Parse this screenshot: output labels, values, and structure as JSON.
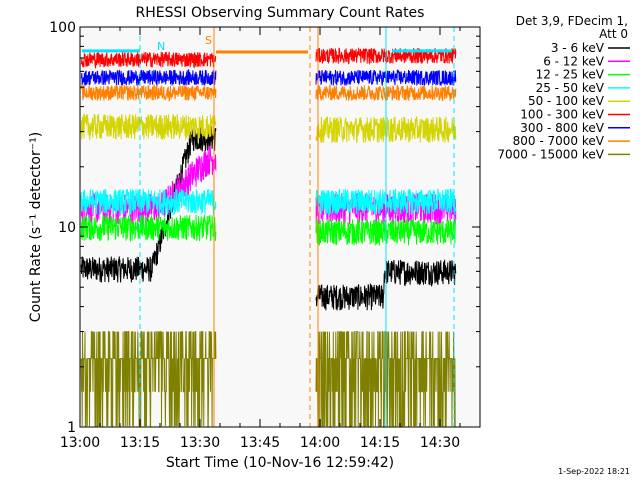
{
  "header": {
    "title": "RHESSI Observing Summary Count Rates",
    "detector_info_1": "Det 3,9, FDecim 1,",
    "detector_info_2": "Att 0",
    "footer_date": "1-Sep-2022 18:21"
  },
  "markers": {
    "s": "S",
    "n": "N"
  },
  "colors": {
    "background": "#ffffff",
    "plot_bg": "#f8f8f8",
    "axis": "#000000",
    "cyan": "#00e5ff",
    "orange": "#ff8000"
  },
  "chart_data": {
    "type": "line",
    "title": "RHESSI Observing Summary Count Rates",
    "xlabel": "Start Time (10-Nov-16 12:59:42)",
    "ylabel": "Count Rate (s⁻¹ detector⁻¹)",
    "y_scale": "log",
    "x_range_min": [
      0,
      100
    ],
    "ylim": [
      1,
      100
    ],
    "x_ticks": [
      {
        "min": 0,
        "label": "13:00"
      },
      {
        "min": 15,
        "label": "13:15"
      },
      {
        "min": 30,
        "label": "13:30"
      },
      {
        "min": 45,
        "label": "13:45"
      },
      {
        "min": 60,
        "label": "14:00"
      },
      {
        "min": 75,
        "label": "14:15"
      },
      {
        "min": 90,
        "label": "14:30"
      }
    ],
    "y_ticks": [
      {
        "value": 1,
        "label": "1"
      },
      {
        "value": 10,
        "label": "10"
      },
      {
        "value": 100,
        "label": "100"
      }
    ],
    "legend_position": "top-right",
    "data_gap_min": [
      34,
      59
    ],
    "series": [
      {
        "name": "3 - 6 keV",
        "color": "#000000",
        "base_pre": 6.2,
        "base_post": 6.0,
        "noise": 0.05,
        "rise": [
          [
            18,
            28,
            28
          ]
        ],
        "post_step": [
          [
            76,
            4.5
          ]
        ]
      },
      {
        "name": "6 - 12 keV",
        "color": "#ff00ff",
        "base_pre": 12.5,
        "base_post": 12.5,
        "noise": 0.06,
        "rise": [
          [
            20,
            32,
            22
          ]
        ]
      },
      {
        "name": "12 - 25 keV",
        "color": "#00ff00",
        "base_pre": 10.0,
        "base_post": 9.5,
        "noise": 0.05
      },
      {
        "name": "25 - 50 keV",
        "color": "#00ffff",
        "base_pre": 13.5,
        "base_post": 13.5,
        "noise": 0.05
      },
      {
        "name": "50 - 100 keV",
        "color": "#d4d400",
        "base_pre": 32,
        "base_post": 31,
        "noise": 0.05
      },
      {
        "name": "100 - 300 keV",
        "color": "#ff0000",
        "base_pre": 69,
        "base_post": 72,
        "noise": 0.03
      },
      {
        "name": "300 - 800 keV",
        "color": "#0000ff",
        "base_pre": 56,
        "base_post": 56,
        "noise": 0.03
      },
      {
        "name": "800 - 7000 keV",
        "color": "#ff8000",
        "base_pre": 47,
        "base_post": 47,
        "noise": 0.03
      },
      {
        "name": "7000 - 15000 keV",
        "color": "#808000",
        "base_pre": 2.2,
        "base_post": 2.2,
        "noise": 0.25
      }
    ],
    "annotation_lines": [
      {
        "type": "cyan_solid",
        "min": 0.0,
        "color": "#00e5ff",
        "dash": false
      },
      {
        "type": "cyan_dashed",
        "min": 15.0,
        "color": "#00e5ff",
        "dash": true
      },
      {
        "type": "orange_solid",
        "min": 33.5,
        "color": "#ff8000",
        "dash": false
      },
      {
        "type": "orange_dashed",
        "min": 57.5,
        "color": "#ff8000",
        "dash": true
      },
      {
        "type": "orange_solid",
        "min": 59.5,
        "color": "#ff8000",
        "dash": false
      },
      {
        "type": "cyan_solid",
        "min": 76.5,
        "color": "#00e5ff",
        "dash": false
      },
      {
        "type": "cyan_dashed",
        "min": 93.5,
        "color": "#00e5ff",
        "dash": true
      }
    ],
    "horizontal_segments": [
      {
        "from": 34,
        "to": 57,
        "value": 75,
        "color": "#ff8000"
      },
      {
        "from": 0.5,
        "to": 15,
        "value": 76,
        "color": "#00e5ff"
      },
      {
        "from": 78,
        "to": 93,
        "value": 76,
        "color": "#00e5ff"
      }
    ]
  }
}
